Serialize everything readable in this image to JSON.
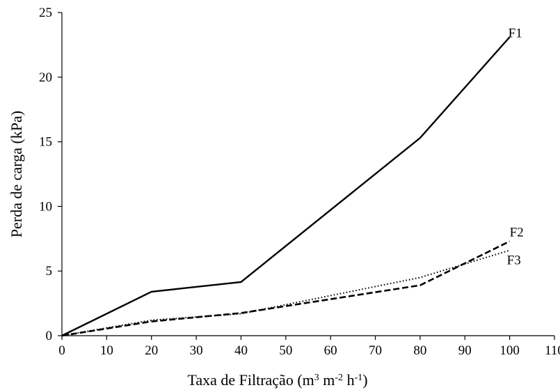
{
  "chart_data": {
    "type": "line",
    "title": "",
    "xlabel": "Taxa de Filtração (m³ m⁻² h⁻¹)",
    "ylabel": "Perda de carga (kPa)",
    "xlim": [
      0,
      110
    ],
    "ylim": [
      0,
      25
    ],
    "xticks": [
      0,
      10,
      20,
      30,
      40,
      50,
      60,
      70,
      80,
      90,
      100,
      110
    ],
    "yticks": [
      0,
      5,
      10,
      15,
      20,
      25
    ],
    "grid": false,
    "legend": "none",
    "series": [
      {
        "name": "F1",
        "style": "solid",
        "color": "#000000",
        "x": [
          0,
          20,
          40,
          80,
          100
        ],
        "y": [
          0,
          3.4,
          4.15,
          15.3,
          23.1
        ]
      },
      {
        "name": "F2",
        "style": "dashed",
        "color": "#000000",
        "x": [
          0,
          20,
          40,
          80,
          100
        ],
        "y": [
          0,
          1.1,
          1.75,
          3.9,
          7.3
        ]
      },
      {
        "name": "F3",
        "style": "dotted",
        "color": "#000000",
        "x": [
          0,
          20,
          40,
          80,
          100
        ],
        "y": [
          0,
          1.2,
          1.7,
          4.5,
          6.6
        ]
      }
    ]
  }
}
